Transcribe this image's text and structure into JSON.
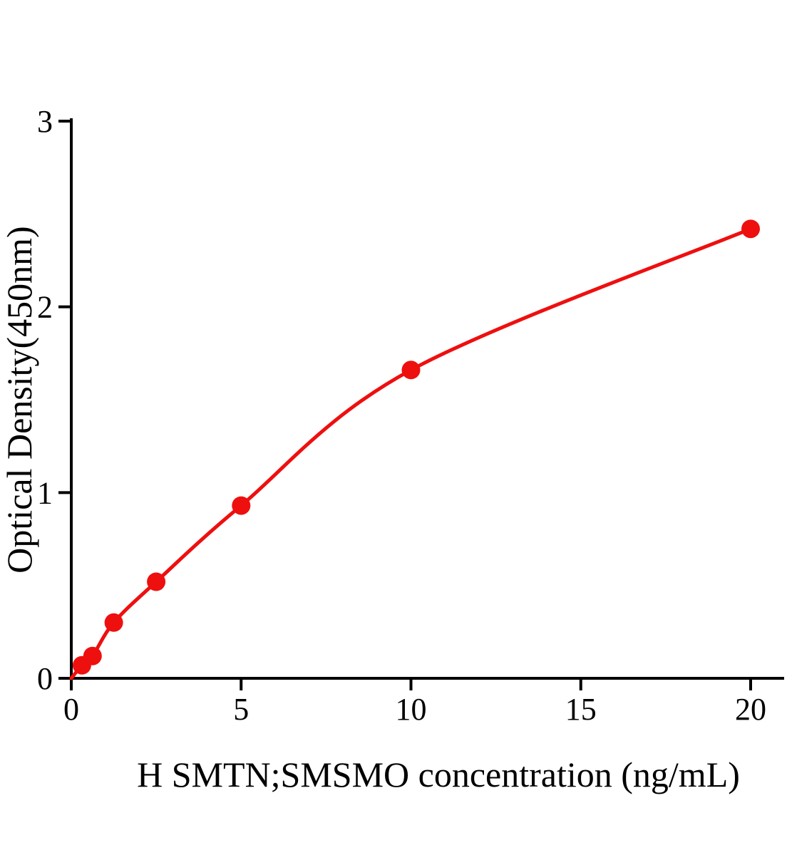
{
  "chart_data": {
    "type": "scatter",
    "title": "",
    "xlabel": "H SMTN;SMSMO concentration (ng/mL)",
    "ylabel": "Optical Density(450nm)",
    "series": [
      {
        "name": "standard-curve-points",
        "x": [
          0.312,
          0.625,
          1.25,
          2.5,
          5,
          10,
          20
        ],
        "y": [
          0.07,
          0.12,
          0.3,
          0.52,
          0.93,
          1.66,
          2.42
        ]
      }
    ],
    "fit_curve": {
      "through_origin": true,
      "origin": [
        0,
        0
      ],
      "style": "smooth saturating fit through data points"
    },
    "xticks": [
      0,
      5,
      10,
      15,
      20
    ],
    "yticks": [
      0,
      1,
      2,
      3
    ],
    "xlim": [
      0,
      21
    ],
    "ylim": [
      0,
      3
    ],
    "grid": false,
    "legend": "none",
    "marker": "filled-circle",
    "colors": {
      "curve": "#EE0F0F",
      "marker": "#EE0F0F",
      "axis": "#000000",
      "text": "#000000"
    }
  }
}
